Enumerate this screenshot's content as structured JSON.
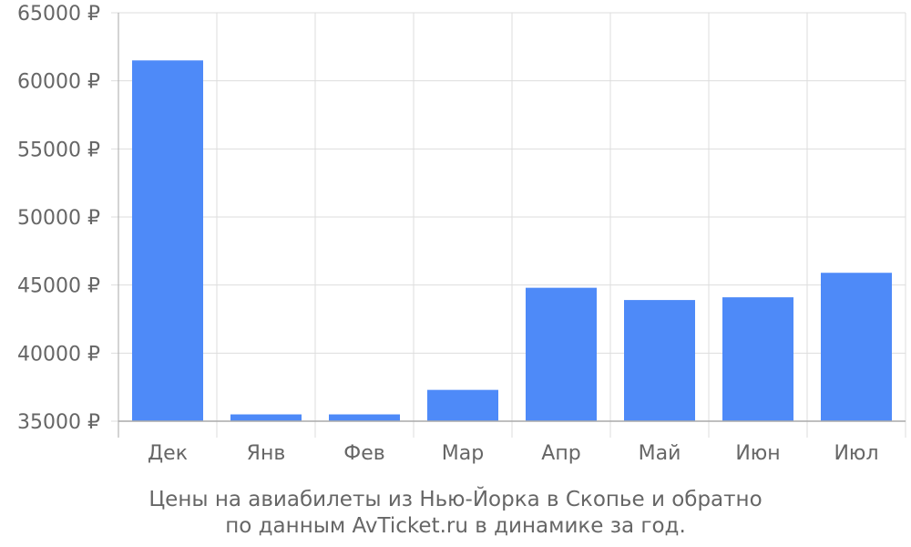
{
  "caption": {
    "line1": "Цены на авиабилеты из Нью-Йорка в Скопье и обратно",
    "line2": "по данным AvTicket.ru в динамике за год."
  },
  "colors": {
    "bar": "#4e8af8",
    "grid": "#dddddd",
    "axis": "#aaaaaa",
    "text": "#666666"
  },
  "chart_data": {
    "type": "bar",
    "categories": [
      "Дек",
      "Янв",
      "Фев",
      "Мар",
      "Апр",
      "Май",
      "Июн",
      "Июл"
    ],
    "values": [
      61500,
      35500,
      35500,
      37300,
      44800,
      43900,
      44100,
      45900
    ],
    "ylim": [
      35000,
      65000
    ],
    "yticks": [
      "65000 ₽",
      "60000 ₽",
      "55000 ₽",
      "50000 ₽",
      "45000 ₽",
      "40000 ₽",
      "35000 ₽"
    ],
    "ytick_values": [
      65000,
      60000,
      55000,
      50000,
      45000,
      40000,
      35000
    ],
    "grid": true
  }
}
